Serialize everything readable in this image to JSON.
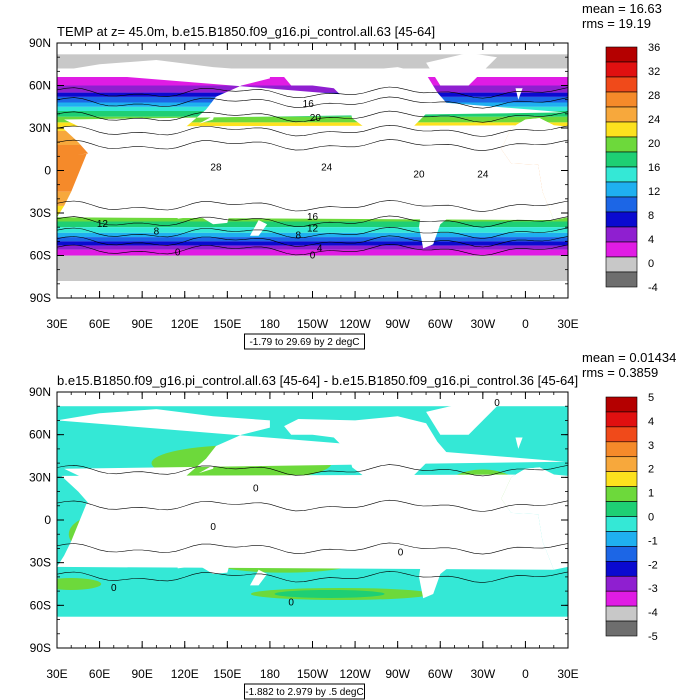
{
  "chart_data": [
    {
      "type": "heatmap",
      "title": "TEMP at z=  45.0m, b.e15.B1850.f09_g16.pi_control.all.63 [45-64]",
      "stats": {
        "mean": "mean = 16.63",
        "rms": "rms = 19.19"
      },
      "x_tick_labels": [
        "30E",
        "60E",
        "90E",
        "120E",
        "150E",
        "180",
        "150W",
        "120W",
        "90W",
        "60W",
        "30W",
        "0",
        "30E"
      ],
      "y_tick_labels": [
        "90N",
        "60N",
        "30N",
        "0",
        "30S",
        "60S",
        "90S"
      ],
      "ylim": [
        -90,
        90
      ],
      "xlim": [
        30,
        390
      ],
      "contour_labels": [
        "16",
        "20",
        "28",
        "24",
        "20",
        "24",
        "12",
        "8",
        "16",
        "12",
        "8",
        "4",
        "0",
        "0"
      ],
      "colorbar_labels": [
        "36",
        "32",
        "28",
        "24",
        "20",
        "16",
        "12",
        "8",
        "4",
        "0",
        "-4"
      ],
      "colorbar_colors": [
        "#b40000",
        "#e01010",
        "#f04a1a",
        "#f58a2a",
        "#f7a83c",
        "#fde11e",
        "#6dd93b",
        "#1ecf74",
        "#34e8d6",
        "#1fb0f0",
        "#1c66e6",
        "#0a0ad0",
        "#8f1fd0",
        "#e01ce4",
        "#c8c8c8",
        "#6e6e6e"
      ],
      "caption": "-1.79 to 29.69 by 2 degC"
    },
    {
      "type": "heatmap",
      "title": "b.e15.B1850.f09_g16.pi_control.all.63 [45-64] - b.e15.B1850.f09_g16.pi_control.36 [45-64]",
      "stats": {
        "mean": "mean = 0.01434",
        "rms": "rms = 0.3859"
      },
      "x_tick_labels": [
        "30E",
        "60E",
        "90E",
        "120E",
        "150E",
        "180",
        "150W",
        "120W",
        "90W",
        "60W",
        "30W",
        "0",
        "30E"
      ],
      "y_tick_labels": [
        "90N",
        "60N",
        "30N",
        "0",
        "30S",
        "60S",
        "90S"
      ],
      "ylim": [
        -90,
        90
      ],
      "xlim": [
        30,
        390
      ],
      "contour_labels": [
        "0",
        "0",
        "0",
        "0",
        "0",
        "0"
      ],
      "colorbar_labels": [
        "5",
        "4",
        "3",
        "2",
        "1",
        "0",
        "-1",
        "-2",
        "-3",
        "-4",
        "-5"
      ],
      "colorbar_colors": [
        "#b40000",
        "#e01010",
        "#f04a1a",
        "#f58a2a",
        "#f7a83c",
        "#fde11e",
        "#6dd93b",
        "#1ecf74",
        "#34e8d6",
        "#1fb0f0",
        "#1c66e6",
        "#0a0ad0",
        "#8f1fd0",
        "#e01ce4",
        "#c8c8c8",
        "#6e6e6e"
      ],
      "caption": "-1.882 to 2.979 by .5 degC"
    }
  ]
}
